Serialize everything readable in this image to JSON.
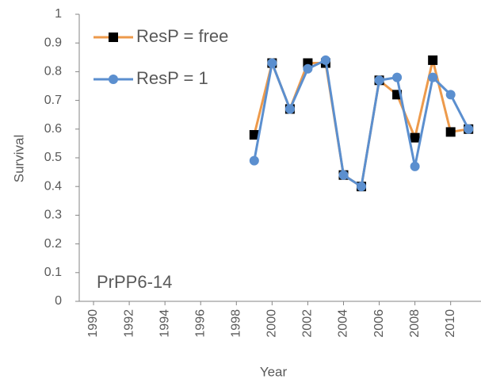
{
  "chart_data": {
    "type": "line",
    "x_label": "Year",
    "y_label": "Survival",
    "annotation": "PrPP6-14",
    "x": [
      1999,
      2000,
      2001,
      2002,
      2003,
      2004,
      2005,
      2006,
      2007,
      2008,
      2009,
      2010,
      2011
    ],
    "series": [
      {
        "name": "ResP = free",
        "color": "#ED9A4B",
        "marker": "square",
        "marker_color": "#000000",
        "values": [
          0.58,
          0.83,
          0.67,
          0.83,
          0.83,
          0.44,
          0.4,
          0.77,
          0.72,
          0.57,
          0.84,
          0.59,
          0.6
        ]
      },
      {
        "name": "ResP = 1",
        "color": "#5B8FCF",
        "marker": "circle",
        "marker_color": "#5B8FCF",
        "values": [
          0.49,
          0.83,
          0.67,
          0.81,
          0.84,
          0.44,
          0.4,
          0.77,
          0.78,
          0.47,
          0.78,
          0.72,
          0.6
        ]
      }
    ],
    "xlim": [
      1989.2,
      2011.7
    ],
    "xticks": [
      1990,
      1992,
      1994,
      1996,
      1998,
      2000,
      2002,
      2004,
      2006,
      2008,
      2010
    ],
    "ylim": [
      0,
      1
    ],
    "yticks": [
      0,
      0.1,
      0.2,
      0.3,
      0.4,
      0.5,
      0.6,
      0.7,
      0.8,
      0.9,
      1
    ],
    "grid": false,
    "legend": "top-left"
  }
}
